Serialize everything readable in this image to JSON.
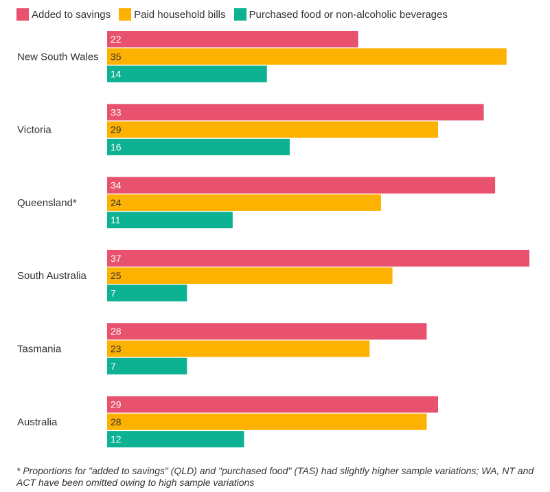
{
  "chart_data": {
    "type": "bar",
    "orientation": "horizontal",
    "categories": [
      "New South Wales",
      "Victoria",
      "Queensland*",
      "South Australia",
      "Tasmania",
      "Australia"
    ],
    "series": [
      {
        "name": "Added to savings",
        "color": "#e8526e",
        "values": [
          22,
          33,
          34,
          37,
          28,
          29
        ]
      },
      {
        "name": "Paid household bills",
        "color": "#fdb100",
        "values": [
          35,
          29,
          24,
          25,
          23,
          28
        ]
      },
      {
        "name": "Purchased food or non-alcoholic beverages",
        "color": "#0db293",
        "values": [
          14,
          16,
          11,
          7,
          7,
          12
        ]
      }
    ],
    "xlim": [
      0,
      37
    ],
    "grid": false,
    "legend": "top-left",
    "data_labels": "inside-left"
  },
  "footnote": "* Proportions for \"added to savings\" (QLD) and \"purchased food\" (TAS) had slightly higher sample variations; WA, NT and ACT have been omitted owing to high sample variations"
}
